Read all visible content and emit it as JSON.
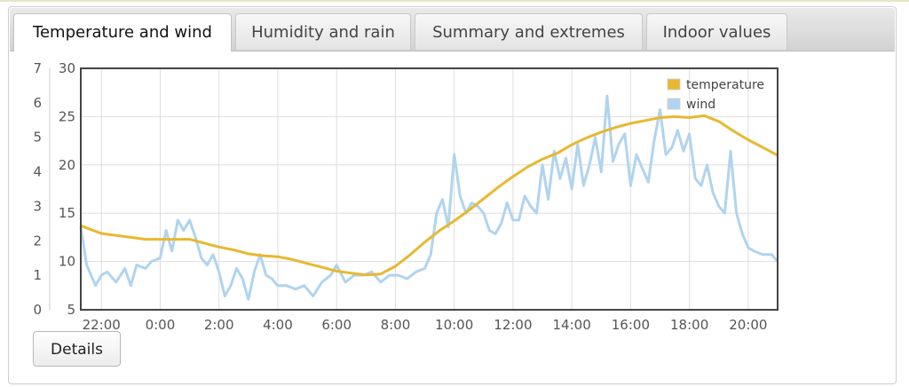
{
  "tabs": [
    {
      "label": "Temperature and wind",
      "active": true
    },
    {
      "label": "Humidity and rain",
      "active": false
    },
    {
      "label": "Summary and extremes",
      "active": false
    },
    {
      "label": "Indoor values",
      "active": false
    }
  ],
  "details_label": "Details",
  "colors": {
    "temperature": "#e8b830",
    "wind": "#b0d4ee",
    "grid": "#dedede"
  },
  "chart_data": {
    "type": "line",
    "legend_position": "top-right",
    "grid": true,
    "x_ticks": [
      "22:00",
      "0:00",
      "2:00",
      "4:00",
      "6:00",
      "8:00",
      "10:00",
      "12:00",
      "14:00",
      "16:00",
      "18:00",
      "20:00"
    ],
    "x_range_hours": [
      -2.7,
      21.0
    ],
    "y_left_outer": {
      "ticks": [
        "0",
        "1",
        "2",
        "3",
        "4",
        "5",
        "6",
        "7"
      ],
      "range": [
        0,
        7
      ]
    },
    "y_left_inner": {
      "ticks": [
        "5",
        "10",
        "15",
        "20",
        "25",
        "30"
      ],
      "range": [
        5,
        30
      ]
    },
    "series": [
      {
        "name": "temperature",
        "axis": "y_left_inner",
        "color": "#e8b830",
        "points": [
          [
            -2.7,
            13.7
          ],
          [
            -2.0,
            12.9
          ],
          [
            -1.5,
            12.7
          ],
          [
            -1.0,
            12.5
          ],
          [
            -0.5,
            12.3
          ],
          [
            0.0,
            12.3
          ],
          [
            0.5,
            12.3
          ],
          [
            1.0,
            12.3
          ],
          [
            1.5,
            11.9
          ],
          [
            2.0,
            11.5
          ],
          [
            2.5,
            11.2
          ],
          [
            3.0,
            10.8
          ],
          [
            3.5,
            10.6
          ],
          [
            4.0,
            10.5
          ],
          [
            4.5,
            10.2
          ],
          [
            5.0,
            9.8
          ],
          [
            5.5,
            9.4
          ],
          [
            6.0,
            9.0
          ],
          [
            6.5,
            8.8
          ],
          [
            7.0,
            8.6
          ],
          [
            7.5,
            8.7
          ],
          [
            8.0,
            9.5
          ],
          [
            8.5,
            10.7
          ],
          [
            9.0,
            12.0
          ],
          [
            9.5,
            13.2
          ],
          [
            10.0,
            14.2
          ],
          [
            10.5,
            15.3
          ],
          [
            11.0,
            16.5
          ],
          [
            11.5,
            17.7
          ],
          [
            12.0,
            18.8
          ],
          [
            12.5,
            19.8
          ],
          [
            13.0,
            20.6
          ],
          [
            13.5,
            21.2
          ],
          [
            14.0,
            22.1
          ],
          [
            14.5,
            22.8
          ],
          [
            15.0,
            23.4
          ],
          [
            15.5,
            23.9
          ],
          [
            16.0,
            24.3
          ],
          [
            16.5,
            24.6
          ],
          [
            17.0,
            24.9
          ],
          [
            17.5,
            25.0
          ],
          [
            18.0,
            24.9
          ],
          [
            18.5,
            25.1
          ],
          [
            19.0,
            24.5
          ],
          [
            19.5,
            23.5
          ],
          [
            20.0,
            22.6
          ],
          [
            20.5,
            21.8
          ],
          [
            21.0,
            21.0
          ]
        ]
      },
      {
        "name": "wind",
        "axis": "y_left_outer",
        "color": "#b0d4ee",
        "points": [
          [
            -2.7,
            2.4
          ],
          [
            -2.5,
            1.3
          ],
          [
            -2.2,
            0.7
          ],
          [
            -2.0,
            1.0
          ],
          [
            -1.8,
            1.1
          ],
          [
            -1.5,
            0.8
          ],
          [
            -1.2,
            1.2
          ],
          [
            -1.0,
            0.7
          ],
          [
            -0.8,
            1.3
          ],
          [
            -0.5,
            1.2
          ],
          [
            -0.3,
            1.4
          ],
          [
            0.0,
            1.5
          ],
          [
            0.2,
            2.3
          ],
          [
            0.4,
            1.7
          ],
          [
            0.6,
            2.6
          ],
          [
            0.8,
            2.3
          ],
          [
            1.0,
            2.6
          ],
          [
            1.2,
            2.1
          ],
          [
            1.4,
            1.5
          ],
          [
            1.6,
            1.3
          ],
          [
            1.8,
            1.6
          ],
          [
            2.0,
            1.1
          ],
          [
            2.2,
            0.4
          ],
          [
            2.4,
            0.7
          ],
          [
            2.6,
            1.2
          ],
          [
            2.8,
            0.9
          ],
          [
            3.0,
            0.3
          ],
          [
            3.2,
            1.1
          ],
          [
            3.4,
            1.6
          ],
          [
            3.6,
            1.0
          ],
          [
            3.8,
            0.9
          ],
          [
            4.0,
            0.7
          ],
          [
            4.3,
            0.7
          ],
          [
            4.6,
            0.6
          ],
          [
            4.9,
            0.7
          ],
          [
            5.2,
            0.4
          ],
          [
            5.5,
            0.8
          ],
          [
            5.8,
            1.0
          ],
          [
            6.0,
            1.3
          ],
          [
            6.3,
            0.8
          ],
          [
            6.6,
            1.0
          ],
          [
            6.9,
            1.0
          ],
          [
            7.2,
            1.1
          ],
          [
            7.5,
            0.8
          ],
          [
            7.8,
            1.0
          ],
          [
            8.1,
            1.0
          ],
          [
            8.4,
            0.9
          ],
          [
            8.7,
            1.1
          ],
          [
            9.0,
            1.2
          ],
          [
            9.2,
            1.6
          ],
          [
            9.4,
            2.8
          ],
          [
            9.6,
            3.2
          ],
          [
            9.8,
            2.4
          ],
          [
            10.0,
            4.5
          ],
          [
            10.2,
            3.3
          ],
          [
            10.4,
            2.8
          ],
          [
            10.6,
            3.1
          ],
          [
            10.8,
            3.0
          ],
          [
            11.0,
            2.8
          ],
          [
            11.2,
            2.3
          ],
          [
            11.4,
            2.2
          ],
          [
            11.6,
            2.5
          ],
          [
            11.8,
            3.1
          ],
          [
            12.0,
            2.6
          ],
          [
            12.2,
            2.6
          ],
          [
            12.4,
            3.3
          ],
          [
            12.6,
            3.0
          ],
          [
            12.8,
            2.8
          ],
          [
            13.0,
            4.2
          ],
          [
            13.2,
            3.2
          ],
          [
            13.4,
            4.6
          ],
          [
            13.6,
            3.8
          ],
          [
            13.8,
            4.4
          ],
          [
            14.0,
            3.5
          ],
          [
            14.2,
            4.8
          ],
          [
            14.4,
            3.6
          ],
          [
            14.6,
            4.2
          ],
          [
            14.8,
            5.0
          ],
          [
            15.0,
            4.0
          ],
          [
            15.2,
            6.2
          ],
          [
            15.4,
            4.3
          ],
          [
            15.6,
            4.8
          ],
          [
            15.8,
            5.1
          ],
          [
            16.0,
            3.6
          ],
          [
            16.2,
            4.5
          ],
          [
            16.4,
            4.1
          ],
          [
            16.6,
            3.7
          ],
          [
            16.8,
            4.9
          ],
          [
            17.0,
            5.8
          ],
          [
            17.2,
            4.5
          ],
          [
            17.4,
            4.7
          ],
          [
            17.6,
            5.2
          ],
          [
            17.8,
            4.6
          ],
          [
            18.0,
            5.1
          ],
          [
            18.2,
            3.8
          ],
          [
            18.4,
            3.6
          ],
          [
            18.6,
            4.2
          ],
          [
            18.8,
            3.4
          ],
          [
            19.0,
            3.0
          ],
          [
            19.2,
            2.8
          ],
          [
            19.4,
            4.6
          ],
          [
            19.6,
            2.8
          ],
          [
            19.8,
            2.2
          ],
          [
            20.0,
            1.8
          ],
          [
            20.2,
            1.7
          ],
          [
            20.5,
            1.6
          ],
          [
            20.8,
            1.6
          ],
          [
            21.0,
            1.4
          ]
        ]
      }
    ]
  }
}
